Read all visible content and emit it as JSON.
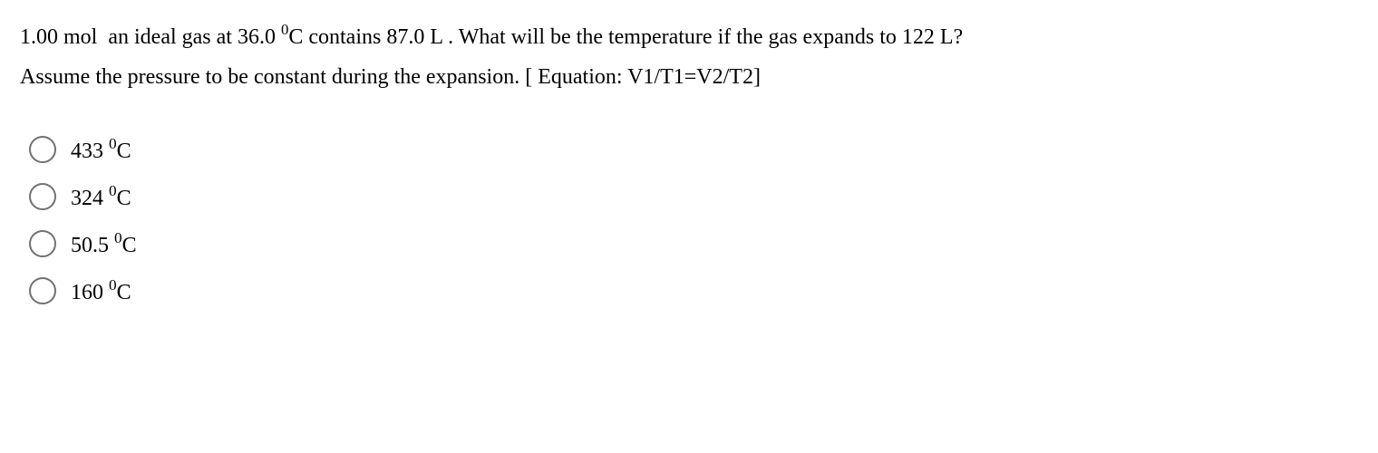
{
  "question": {
    "mol_value": "1.00",
    "mol_unit": "mol",
    "sentence_pre": " an ideal gas at ",
    "temp_value": "36.0",
    "temp_sup": "0",
    "temp_unit": "C",
    "sentence_mid1": " contains ",
    "vol1_value": "87.0",
    "vol_unit": "L",
    "sentence_mid2": " . What will be the temperature if the gas expands to ",
    "vol2_value": "122",
    "sentence_end": "?",
    "line2_pre": "Assume the pressure to be constant during the expansion. [ Equation: ",
    "equation": "V1/T1=V2/T2",
    "line2_end": "]"
  },
  "options": [
    {
      "value": "433",
      "sup": "0",
      "unit": "C"
    },
    {
      "value": "324",
      "sup": "0",
      "unit": "C"
    },
    {
      "value": "50.5",
      "sup": "0",
      "unit": "C"
    },
    {
      "value": "160",
      "sup": "0",
      "unit": "C"
    }
  ],
  "styles": {
    "background_color": "#ffffff",
    "text_color": "#000000",
    "radio_border_color": "#717171",
    "font_size_pt": 18,
    "font_family": "Times New Roman"
  }
}
